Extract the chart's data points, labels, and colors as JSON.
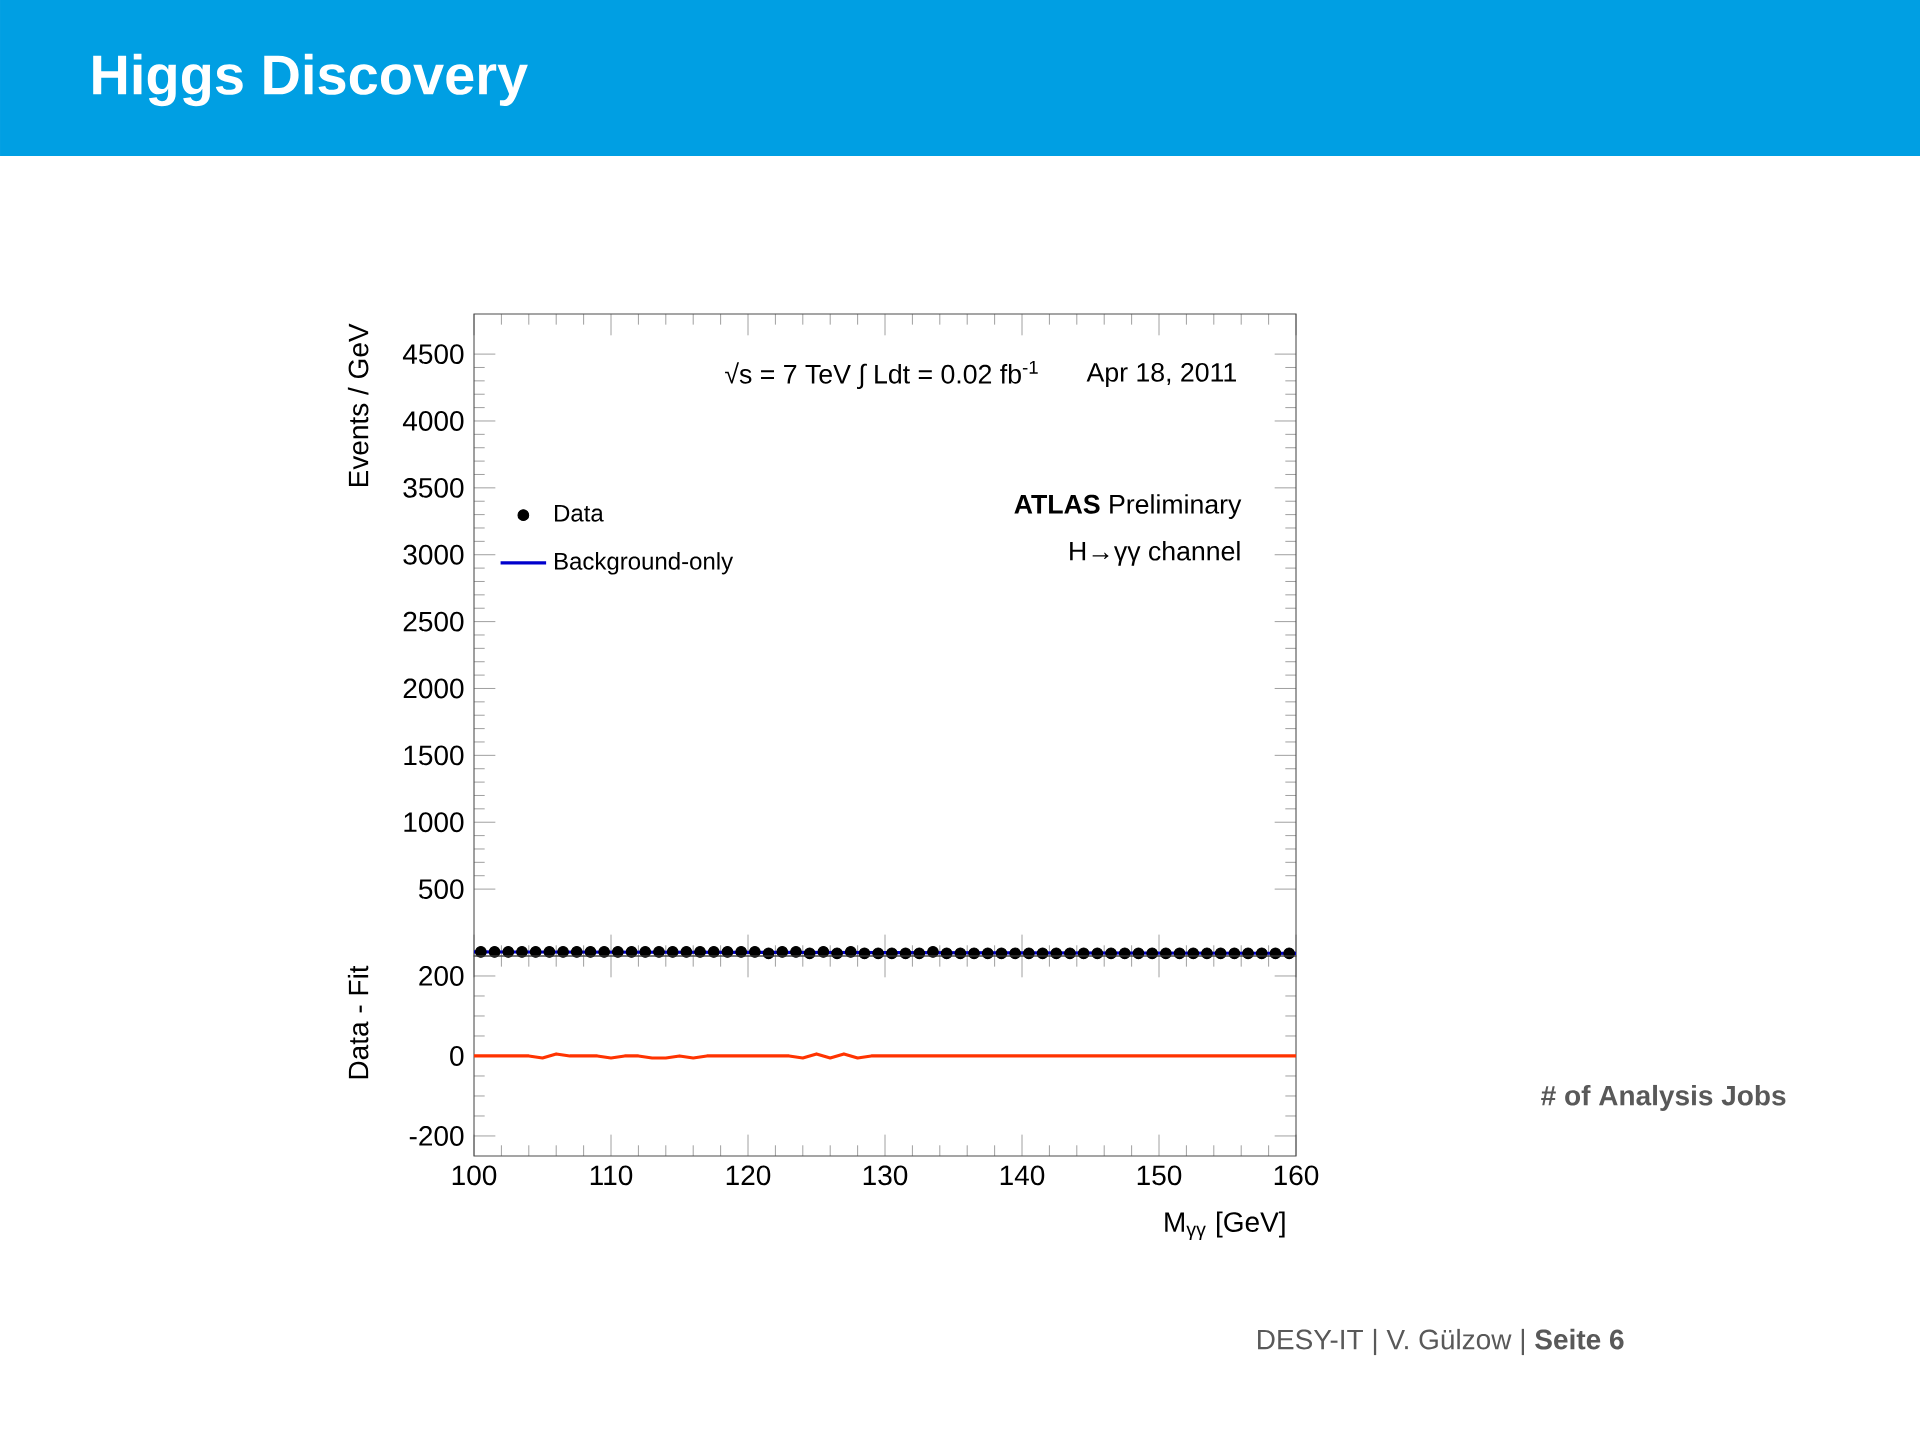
{
  "chart_data": [
    {
      "type": "scatter",
      "title": "Higgs Discovery",
      "ylabel": "Events / GeV",
      "xlim": [
        100,
        160
      ],
      "ylim": [
        0,
        4800
      ],
      "xticks": [
        100,
        110,
        120,
        130,
        140,
        150,
        160
      ],
      "yticks": [
        500,
        1000,
        1500,
        2000,
        2500,
        3000,
        3500,
        4000,
        4500
      ],
      "tick_labels": "y",
      "legend": "top left",
      "annotations": [
        "√s = 7 TeV  ∫ Ldt = 0.02 fb$^{-1}$",
        "Apr 18, 2011",
        "**ATLAS**  Preliminary",
        "H→γγ channel",
        "# of Analysis Jobs"
      ],
      "series": [
        {
          "name": "Data",
          "type": "scatter",
          "marker": "circle",
          "color": "#000000",
          "x": [
            100.5,
            101.5,
            102.5,
            103.5,
            104.5,
            105.5,
            106.5,
            107.5,
            108.5,
            109.5,
            110.5,
            111.5,
            112.5,
            113.5,
            114.5,
            115.5,
            116.5,
            117.5,
            118.5,
            119.5,
            120.5,
            121.5,
            122.5,
            123.5,
            124.5,
            125.5,
            126.5,
            127.5,
            128.5,
            129.5,
            130.5,
            131.5,
            132.5,
            133.5,
            134.5,
            135.5,
            136.5,
            137.5,
            138.5,
            139.5,
            140.5,
            141.5,
            142.5,
            143.5,
            144.5,
            145.5,
            146.5,
            147.5,
            148.5,
            149.5,
            150.5,
            151.5,
            152.5,
            153.5,
            154.5,
            155.5,
            156.5,
            157.5,
            158.5,
            159.5
          ],
          "values": [
            30,
            30,
            30,
            30,
            30,
            30,
            30,
            30,
            30,
            30,
            30,
            30,
            30,
            30,
            30,
            30,
            30,
            30,
            30,
            30,
            30,
            20,
            30,
            30,
            20,
            30,
            20,
            30,
            20,
            20,
            20,
            20,
            20,
            30,
            20,
            20,
            20,
            20,
            20,
            20,
            20,
            20,
            20,
            20,
            20,
            20,
            20,
            20,
            20,
            20,
            20,
            20,
            20,
            20,
            20,
            20,
            20,
            20,
            20,
            20
          ]
        },
        {
          "name": "Background-only",
          "type": "line",
          "marker": "none",
          "color": "#0000cc",
          "x": [
            100,
            160
          ],
          "values": [
            30,
            20
          ]
        }
      ]
    },
    {
      "type": "line",
      "ylabel": "Data - Fit",
      "xlabel": "M$_{γγ}$ [GeV]",
      "xlim": [
        100,
        160
      ],
      "ylim": [
        -250,
        250
      ],
      "xticks": [
        100,
        110,
        120,
        130,
        140,
        150,
        160
      ],
      "yticks": [
        -200,
        0,
        200
      ],
      "annotations": [
        "DESY-IT  |  V. Gülzow  |  **Seite 6**"
      ],
      "series": [
        {
          "color": "#ff3300",
          "x": [
            100,
            101,
            102,
            103,
            104,
            105,
            106,
            107,
            108,
            109,
            110,
            111,
            112,
            113,
            114,
            115,
            116,
            117,
            118,
            119,
            120,
            121,
            122,
            123,
            124,
            125,
            126,
            127,
            128,
            129,
            130,
            135,
            140,
            145,
            150,
            155,
            160
          ],
          "values": [
            0,
            0,
            0,
            0,
            0,
            -5,
            5,
            0,
            0,
            0,
            -5,
            0,
            0,
            -5,
            -5,
            0,
            -5,
            0,
            0,
            0,
            0,
            0,
            0,
            0,
            -5,
            5,
            -5,
            5,
            -5,
            0,
            0,
            0,
            0,
            0,
            0,
            0,
            0
          ]
        }
      ]
    }
  ]
}
